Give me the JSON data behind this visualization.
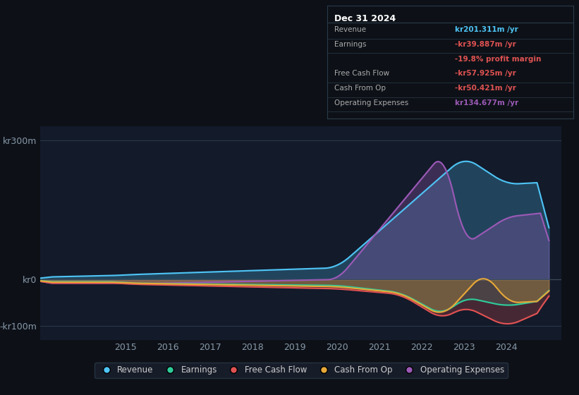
{
  "bg_color": "#0d1117",
  "plot_bg_color": "#131a2a",
  "title": "Dec 31 2024",
  "y_labels": [
    "kr300m",
    "kr0",
    "-kr100m"
  ],
  "y_ticks": [
    300,
    0,
    -100
  ],
  "x_ticks": [
    2015,
    2016,
    2017,
    2018,
    2019,
    2020,
    2021,
    2022,
    2023,
    2024
  ],
  "colors": {
    "revenue": "#4ec4f5",
    "earnings": "#2ecc9a",
    "free_cash_flow": "#e05252",
    "cash_from_op": "#e8a838",
    "operating_expenses": "#9b59b6"
  },
  "legend": [
    {
      "label": "Revenue",
      "color": "#4ec4f5"
    },
    {
      "label": "Earnings",
      "color": "#2ecc9a"
    },
    {
      "label": "Free Cash Flow",
      "color": "#e05252"
    },
    {
      "label": "Cash From Op",
      "color": "#e8a838"
    },
    {
      "label": "Operating Expenses",
      "color": "#9b59b6"
    }
  ]
}
